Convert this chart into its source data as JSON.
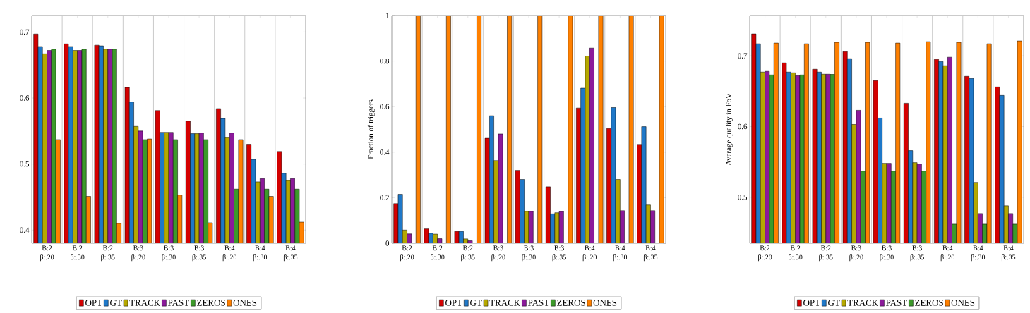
{
  "chart_data": [
    {
      "type": "bar",
      "categories": [
        "B:2 β:.20",
        "B:2 β:.30",
        "B:2 β:.35",
        "B:3 β:.20",
        "B:3 β:.30",
        "B:3 β:.35",
        "B:4 β:.20",
        "B:4 β:.30",
        "B:4 β:.35"
      ],
      "series": [
        {
          "name": "OPT",
          "color": "#d40000",
          "values": [
            0.697,
            0.682,
            0.68,
            0.616,
            0.581,
            0.565,
            0.584,
            0.53,
            0.519
          ]
        },
        {
          "name": "GT",
          "color": "#1f78c8",
          "values": [
            0.678,
            0.678,
            0.679,
            0.594,
            0.548,
            0.546,
            0.569,
            0.507,
            0.486
          ]
        },
        {
          "name": "TRACK",
          "color": "#b5a800",
          "values": [
            0.667,
            0.672,
            0.674,
            0.557,
            0.548,
            0.546,
            0.54,
            0.473,
            0.475
          ]
        },
        {
          "name": "PAST",
          "color": "#8b1a9a",
          "values": [
            0.672,
            0.672,
            0.674,
            0.55,
            0.548,
            0.547,
            0.547,
            0.478,
            0.478
          ]
        },
        {
          "name": "ZEROS",
          "color": "#3c9a2a",
          "values": [
            0.674,
            0.674,
            0.674,
            0.537,
            0.537,
            0.537,
            0.462,
            0.462,
            0.462
          ]
        },
        {
          "name": "ONES",
          "color": "#ff8000",
          "values": [
            0.537,
            0.451,
            0.41,
            0.538,
            0.453,
            0.411,
            0.537,
            0.451,
            0.412
          ]
        }
      ],
      "ylim": [
        0.38,
        0.725
      ],
      "yticks": [
        0.4,
        0.5,
        0.6,
        0.7
      ],
      "grid": "x",
      "legend": "bottom"
    },
    {
      "type": "bar",
      "ylabel": "Fraction of triggers",
      "categories": [
        "B:2 β:.20",
        "B:2 β:.30",
        "B:2 β:.35",
        "B:3 β:.20",
        "B:3 β:.30",
        "B:3 β:.35",
        "B:4 β:.20",
        "B:4 β:.30",
        "B:4 β:.35"
      ],
      "series": [
        {
          "name": "OPT",
          "color": "#d40000",
          "values": [
            0.174,
            0.063,
            0.052,
            0.461,
            0.32,
            0.248,
            0.594,
            0.504,
            0.434
          ]
        },
        {
          "name": "GT",
          "color": "#1f78c8",
          "values": [
            0.215,
            0.044,
            0.052,
            0.56,
            0.28,
            0.129,
            0.681,
            0.596,
            0.512
          ]
        },
        {
          "name": "TRACK",
          "color": "#b5a800",
          "values": [
            0.058,
            0.04,
            0.019,
            0.363,
            0.14,
            0.134,
            0.822,
            0.28,
            0.168
          ]
        },
        {
          "name": "PAST",
          "color": "#8b1a9a",
          "values": [
            0.041,
            0.02,
            0.011,
            0.48,
            0.14,
            0.139,
            0.857,
            0.143,
            0.143
          ]
        },
        {
          "name": "ZEROS",
          "color": "#3c9a2a",
          "values": [
            0,
            0,
            0,
            0,
            0,
            0,
            0,
            0,
            0
          ]
        },
        {
          "name": "ONES",
          "color": "#ff8000",
          "values": [
            1,
            1,
            1,
            1,
            1,
            1,
            1,
            1,
            1
          ]
        }
      ],
      "ylim": [
        0,
        1
      ],
      "yticks": [
        0,
        0.2,
        0.4,
        0.6,
        0.8,
        1
      ],
      "grid": "x",
      "legend": "bottom"
    },
    {
      "type": "bar",
      "ylabel": "Average quality in FoV",
      "categories": [
        "B:2 β:.20",
        "B:2 β:.30",
        "B:2 β:.35",
        "B:3 β:.20",
        "B:3 β:.30",
        "B:3 β:.35",
        "B:4 β:.20",
        "B:4 β:.30",
        "B:4 β:.35"
      ],
      "series": [
        {
          "name": "OPT",
          "color": "#d40000",
          "values": [
            0.731,
            0.69,
            0.681,
            0.706,
            0.665,
            0.633,
            0.695,
            0.671,
            0.656
          ]
        },
        {
          "name": "GT",
          "color": "#1f78c8",
          "values": [
            0.717,
            0.677,
            0.677,
            0.696,
            0.612,
            0.566,
            0.692,
            0.668,
            0.644
          ]
        },
        {
          "name": "TRACK",
          "color": "#b5a800",
          "values": [
            0.677,
            0.676,
            0.674,
            0.603,
            0.548,
            0.549,
            0.686,
            0.521,
            0.488
          ]
        },
        {
          "name": "PAST",
          "color": "#8b1a9a",
          "values": [
            0.678,
            0.672,
            0.674,
            0.623,
            0.548,
            0.547,
            0.698,
            0.477,
            0.477
          ]
        },
        {
          "name": "ZEROS",
          "color": "#3c9a2a",
          "values": [
            0.673,
            0.673,
            0.674,
            0.537,
            0.537,
            0.537,
            0.462,
            0.462,
            0.462
          ]
        },
        {
          "name": "ONES",
          "color": "#ff8000",
          "values": [
            0.718,
            0.717,
            0.719,
            0.719,
            0.718,
            0.72,
            0.719,
            0.717,
            0.721
          ]
        }
      ],
      "ylim": [
        0.435,
        0.757
      ],
      "yticks": [
        0.5,
        0.6,
        0.7
      ],
      "grid": "x",
      "legend": "bottom"
    }
  ]
}
